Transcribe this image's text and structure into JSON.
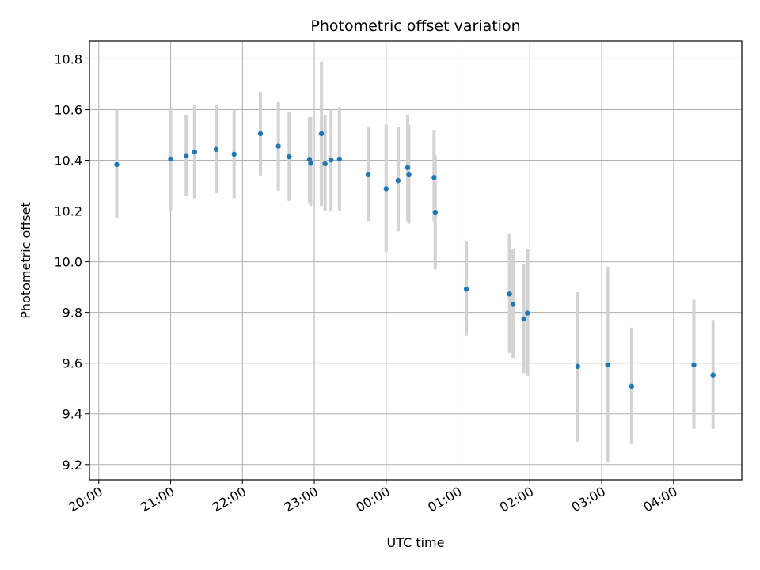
{
  "chart_data": {
    "type": "scatter",
    "title": "Photometric offset variation",
    "xlabel": "UTC time",
    "ylabel": "Photometric offset",
    "grid": true,
    "colors": {
      "points": "#1f77b4",
      "errorbars": "#d3d3d3",
      "grid": "#b0b0b0"
    },
    "x_tick_labels": [
      "20:00",
      "21:00",
      "22:00",
      "23:00",
      "00:00",
      "01:00",
      "02:00",
      "03:00",
      "04:00"
    ],
    "x_tick_positions_hours": [
      20,
      21,
      22,
      23,
      24,
      25,
      26,
      27,
      28
    ],
    "x_axis_note": "hours since 20:00 of the first night are not printed; x values are clock times on a day-rollover axis",
    "xlim_hours": [
      19.87,
      28.95
    ],
    "ylim": [
      9.14,
      10.87
    ],
    "y_ticks": [
      "9.2",
      "9.4",
      "9.6",
      "9.8",
      "10.0",
      "10.2",
      "10.4",
      "10.6",
      "10.8"
    ],
    "y_tick_values": [
      9.2,
      9.4,
      9.6,
      9.8,
      10.0,
      10.2,
      10.4,
      10.6,
      10.8
    ],
    "points": [
      {
        "t": "20:15",
        "y": 10.383,
        "lo": 10.17,
        "hi": 10.6
      },
      {
        "t": "21:00",
        "y": 10.405,
        "lo": 10.2,
        "hi": 10.61
      },
      {
        "t": "21:13",
        "y": 10.418,
        "lo": 10.26,
        "hi": 10.58
      },
      {
        "t": "21:20",
        "y": 10.433,
        "lo": 10.25,
        "hi": 10.62
      },
      {
        "t": "21:38",
        "y": 10.443,
        "lo": 10.27,
        "hi": 10.62
      },
      {
        "t": "21:53",
        "y": 10.424,
        "lo": 10.25,
        "hi": 10.6
      },
      {
        "t": "22:15",
        "y": 10.505,
        "lo": 10.34,
        "hi": 10.67
      },
      {
        "t": "22:30",
        "y": 10.456,
        "lo": 10.28,
        "hi": 10.63
      },
      {
        "t": "22:39",
        "y": 10.414,
        "lo": 10.24,
        "hi": 10.59
      },
      {
        "t": "22:56",
        "y": 10.404,
        "lo": 10.23,
        "hi": 10.57
      },
      {
        "t": "22:57",
        "y": 10.388,
        "lo": 10.22,
        "hi": 10.57
      },
      {
        "t": "23:06",
        "y": 10.505,
        "lo": 10.22,
        "hi": 10.79
      },
      {
        "t": "23:09",
        "y": 10.386,
        "lo": 10.2,
        "hi": 10.58
      },
      {
        "t": "23:14",
        "y": 10.401,
        "lo": 10.2,
        "hi": 10.6
      },
      {
        "t": "23:21",
        "y": 10.405,
        "lo": 10.2,
        "hi": 10.61
      },
      {
        "t": "23:45",
        "y": 10.345,
        "lo": 10.16,
        "hi": 10.53
      },
      {
        "t": "00:00",
        "y": 10.288,
        "lo": 10.04,
        "hi": 10.54
      },
      {
        "t": "00:10",
        "y": 10.32,
        "lo": 10.12,
        "hi": 10.53
      },
      {
        "t": "00:18",
        "y": 10.371,
        "lo": 10.16,
        "hi": 10.58
      },
      {
        "t": "00:19",
        "y": 10.345,
        "lo": 10.15,
        "hi": 10.54
      },
      {
        "t": "00:40",
        "y": 10.332,
        "lo": 10.16,
        "hi": 10.52
      },
      {
        "t": "00:41",
        "y": 10.195,
        "lo": 9.97,
        "hi": 10.42
      },
      {
        "t": "01:07",
        "y": 9.892,
        "lo": 9.71,
        "hi": 10.08
      },
      {
        "t": "01:43",
        "y": 9.873,
        "lo": 9.64,
        "hi": 10.11
      },
      {
        "t": "01:46",
        "y": 9.832,
        "lo": 9.62,
        "hi": 10.05
      },
      {
        "t": "01:55",
        "y": 9.774,
        "lo": 9.56,
        "hi": 9.99
      },
      {
        "t": "01:58",
        "y": 9.797,
        "lo": 9.55,
        "hi": 10.05
      },
      {
        "t": "02:40",
        "y": 9.587,
        "lo": 9.29,
        "hi": 9.88
      },
      {
        "t": "03:05",
        "y": 9.593,
        "lo": 9.21,
        "hi": 9.98
      },
      {
        "t": "03:25",
        "y": 9.509,
        "lo": 9.28,
        "hi": 9.74
      },
      {
        "t": "04:17",
        "y": 9.593,
        "lo": 9.34,
        "hi": 9.85
      },
      {
        "t": "04:33",
        "y": 9.553,
        "lo": 9.34,
        "hi": 9.77
      }
    ]
  }
}
